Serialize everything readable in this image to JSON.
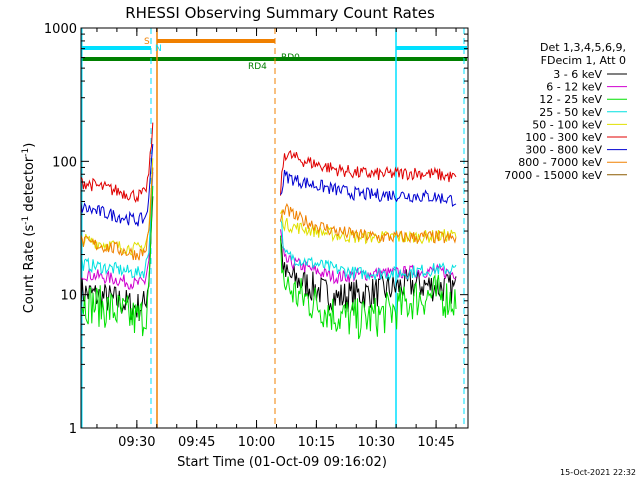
{
  "chart_data": {
    "type": "line",
    "title": "RHESSI Observing Summary Count Rates",
    "xlabel": "Start Time (01-Oct-09 09:16:02)",
    "ylabel_main": "Count Rate (s",
    "ylabel_sup1": "-1",
    "ylabel_mid": " detector",
    "ylabel_sup2": "-1",
    "ylabel_end": ")",
    "yscale": "log",
    "ylim": [
      1,
      1000
    ],
    "xlim": [
      "09:16",
      "10:53"
    ],
    "x_ticks": [
      "09:30",
      "09:45",
      "10:00",
      "10:15",
      "10:30",
      "10:45"
    ],
    "y_ticks": [
      "1",
      "10",
      "100",
      "1000"
    ],
    "legend_title": [
      "Det 1,3,4,5,6,9,",
      "FDecim 1, Att 0"
    ],
    "legend_position": "right",
    "series": [
      {
        "name": "3 - 6 keV",
        "color": "#000000",
        "points": [
          [
            "09:16",
            10.5
          ],
          [
            "09:25",
            9
          ],
          [
            "09:30",
            8
          ],
          [
            "09:32",
            8.5
          ],
          [
            "09:33",
            13
          ],
          [
            "09:34",
            60
          ],
          [
            "10:06",
            26
          ],
          [
            "10:07",
            14
          ],
          [
            "10:10",
            13
          ],
          [
            "10:15",
            11
          ],
          [
            "10:20",
            9.5
          ],
          [
            "10:25",
            10
          ],
          [
            "10:30",
            10.5
          ],
          [
            "10:36",
            11.5
          ],
          [
            "10:40",
            12
          ],
          [
            "10:45",
            11.5
          ],
          [
            "10:50",
            11
          ]
        ]
      },
      {
        "name": "6 - 12 keV",
        "color": "#d000d0",
        "points": [
          [
            "09:16",
            14.5
          ],
          [
            "09:25",
            13
          ],
          [
            "09:30",
            12
          ],
          [
            "09:32",
            12.5
          ],
          [
            "09:33",
            18
          ],
          [
            "09:34",
            80
          ],
          [
            "10:06",
            30
          ],
          [
            "10:07",
            18
          ],
          [
            "10:10",
            17
          ],
          [
            "10:15",
            15
          ],
          [
            "10:20",
            13.5
          ],
          [
            "10:25",
            14
          ],
          [
            "10:30",
            14.5
          ],
          [
            "10:36",
            14.5
          ],
          [
            "10:40",
            15
          ],
          [
            "10:45",
            15
          ],
          [
            "10:50",
            14.5
          ]
        ]
      },
      {
        "name": "12 - 25 keV",
        "color": "#00e000",
        "points": [
          [
            "09:16",
            9
          ],
          [
            "09:25",
            7.5
          ],
          [
            "09:30",
            6.5
          ],
          [
            "09:32",
            7
          ],
          [
            "09:33",
            10
          ],
          [
            "09:34",
            50
          ],
          [
            "10:06",
            22
          ],
          [
            "10:07",
            12
          ],
          [
            "10:10",
            10
          ],
          [
            "10:15",
            8.5
          ],
          [
            "10:20",
            7
          ],
          [
            "10:25",
            6.5
          ],
          [
            "10:30",
            6.8
          ],
          [
            "10:36",
            8
          ],
          [
            "10:40",
            9.5
          ],
          [
            "10:45",
            10
          ],
          [
            "10:50",
            9
          ]
        ]
      },
      {
        "name": "25 - 50 keV",
        "color": "#00e0e0",
        "points": [
          [
            "09:16",
            17
          ],
          [
            "09:25",
            15.5
          ],
          [
            "09:30",
            14.5
          ],
          [
            "09:32",
            15
          ],
          [
            "09:33",
            22
          ],
          [
            "09:34",
            90
          ],
          [
            "10:06",
            40
          ],
          [
            "10:07",
            20
          ],
          [
            "10:10",
            18.5
          ],
          [
            "10:15",
            17
          ],
          [
            "10:20",
            15.5
          ],
          [
            "10:25",
            14.5
          ],
          [
            "10:30",
            14.5
          ],
          [
            "10:36",
            14.5
          ],
          [
            "10:40",
            15
          ],
          [
            "10:45",
            15.5
          ],
          [
            "10:50",
            15.5
          ]
        ]
      },
      {
        "name": "50 - 100 keV",
        "color": "#e0e000",
        "points": [
          [
            "09:16",
            26
          ],
          [
            "09:25",
            23
          ],
          [
            "09:30",
            22
          ],
          [
            "09:32",
            23
          ],
          [
            "09:33",
            30
          ],
          [
            "09:34",
            100
          ],
          [
            "10:06",
            42
          ],
          [
            "10:07",
            34
          ],
          [
            "10:10",
            32
          ],
          [
            "10:15",
            30
          ],
          [
            "10:20",
            28
          ],
          [
            "10:25",
            27
          ],
          [
            "10:30",
            27
          ],
          [
            "10:36",
            27
          ],
          [
            "10:40",
            27
          ],
          [
            "10:45",
            27.5
          ],
          [
            "10:50",
            28
          ]
        ]
      },
      {
        "name": "100 - 300 keV",
        "color": "#e00000",
        "points": [
          [
            "09:16",
            70
          ],
          [
            "09:25",
            60
          ],
          [
            "09:30",
            55
          ],
          [
            "09:32",
            57
          ],
          [
            "09:33",
            80
          ],
          [
            "09:34",
            180
          ],
          [
            "10:06",
            60
          ],
          [
            "10:07",
            115
          ],
          [
            "10:10",
            105
          ],
          [
            "10:15",
            95
          ],
          [
            "10:20",
            87
          ],
          [
            "10:25",
            82
          ],
          [
            "10:30",
            80
          ],
          [
            "10:36",
            81
          ],
          [
            "10:40",
            82
          ],
          [
            "10:45",
            80
          ],
          [
            "10:50",
            75
          ]
        ]
      },
      {
        "name": "300 - 800 keV",
        "color": "#0000d0",
        "points": [
          [
            "09:16",
            45
          ],
          [
            "09:25",
            39
          ],
          [
            "09:30",
            36
          ],
          [
            "09:32",
            37
          ],
          [
            "09:33",
            50
          ],
          [
            "09:34",
            150
          ],
          [
            "10:06",
            55
          ],
          [
            "10:07",
            78
          ],
          [
            "10:10",
            72
          ],
          [
            "10:15",
            66
          ],
          [
            "10:20",
            61
          ],
          [
            "10:25",
            57
          ],
          [
            "10:30",
            56
          ],
          [
            "10:36",
            56
          ],
          [
            "10:40",
            55
          ],
          [
            "10:45",
            54
          ],
          [
            "10:50",
            51
          ]
        ]
      },
      {
        "name": "800 - 7000 keV",
        "color": "#f08000",
        "points": [
          [
            "09:16",
            25
          ],
          [
            "09:25",
            22
          ],
          [
            "09:30",
            20
          ],
          [
            "09:32",
            21
          ],
          [
            "09:33",
            28
          ],
          [
            "09:34",
            90
          ],
          [
            "10:06",
            35
          ],
          [
            "10:07",
            44
          ],
          [
            "10:10",
            38
          ],
          [
            "10:15",
            33
          ],
          [
            "10:20",
            30
          ],
          [
            "10:25",
            28
          ],
          [
            "10:30",
            27
          ],
          [
            "10:36",
            27
          ],
          [
            "10:40",
            27
          ],
          [
            "10:45",
            27
          ],
          [
            "10:50",
            26
          ]
        ]
      },
      {
        "name": "7000 - 15000 keV",
        "color": "#8b5a00",
        "points": []
      }
    ]
  }
}
